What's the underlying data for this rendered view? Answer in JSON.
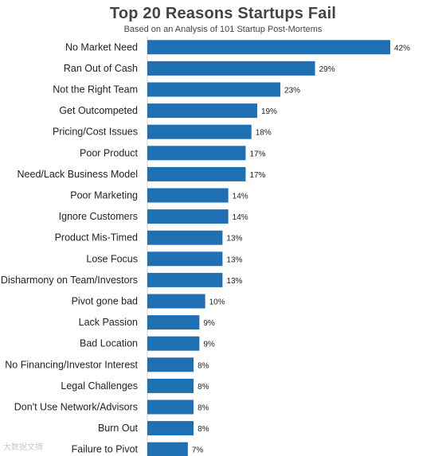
{
  "chart_data": {
    "type": "bar",
    "orientation": "horizontal",
    "title": "Top 20 Reasons Startups Fail",
    "subtitle": "Based on an Analysis of 101 Startup Post-Mortems",
    "value_suffix": "%",
    "bar_color": "#1F6FB3",
    "categories": [
      "No Market Need",
      "Ran Out of Cash",
      "Not the Right Team",
      "Get Outcompeted",
      "Pricing/Cost Issues",
      "Poor Product",
      "Need/Lack Business Model",
      "Poor Marketing",
      "Ignore Customers",
      "Product Mis-Timed",
      "Lose Focus",
      "Disharmony on Team/Investors",
      "Pivot gone bad",
      "Lack Passion",
      "Bad Location",
      "No Financing/Investor Interest",
      "Legal Challenges",
      "Don't Use Network/Advisors",
      "Burn Out",
      "Failure to Pivot"
    ],
    "values": [
      42,
      29,
      23,
      19,
      18,
      17,
      17,
      14,
      14,
      13,
      13,
      13,
      10,
      9,
      9,
      8,
      8,
      8,
      8,
      7
    ],
    "xlim": [
      0,
      42
    ]
  },
  "watermark": "大数据文摘"
}
